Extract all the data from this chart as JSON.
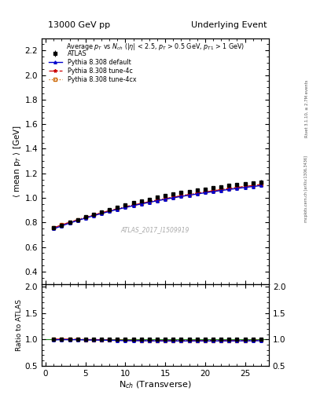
{
  "title_left": "13000 GeV pp",
  "title_right": "Underlying Event",
  "right_label": "Rivet 3.1.10, ≥ 2.7M events",
  "right_label2": "mcplots.cern.ch [arXiv:1306.3436]",
  "watermark": "ATLAS_2017_I1509919",
  "xlabel": "N$_{ch}$ (Transverse)",
  "ylabel_main": "⟨ mean p$_T$ ⟩ [GeV]",
  "ylabel_ratio": "Ratio to ATLAS",
  "ylim_main": [
    0.3,
    2.3
  ],
  "ylim_ratio": [
    0.5,
    2.05
  ],
  "yticks_main": [
    0.4,
    0.6,
    0.8,
    1.0,
    1.2,
    1.4,
    1.6,
    1.8,
    2.0,
    2.2
  ],
  "yticks_ratio": [
    0.5,
    1.0,
    1.5,
    2.0
  ],
  "xlim": [
    -0.5,
    28
  ],
  "nch": [
    1,
    2,
    3,
    4,
    5,
    6,
    7,
    8,
    9,
    10,
    11,
    12,
    13,
    14,
    15,
    16,
    17,
    18,
    19,
    20,
    21,
    22,
    23,
    24,
    25,
    26,
    27
  ],
  "atlas_y": [
    0.755,
    0.775,
    0.8,
    0.82,
    0.845,
    0.865,
    0.885,
    0.905,
    0.925,
    0.945,
    0.96,
    0.975,
    0.99,
    1.005,
    1.018,
    1.03,
    1.042,
    1.052,
    1.062,
    1.072,
    1.082,
    1.09,
    1.1,
    1.108,
    1.115,
    1.122,
    1.128
  ],
  "atlas_yerr": [
    0.008,
    0.006,
    0.005,
    0.005,
    0.005,
    0.005,
    0.005,
    0.005,
    0.005,
    0.005,
    0.005,
    0.005,
    0.005,
    0.005,
    0.006,
    0.006,
    0.006,
    0.007,
    0.007,
    0.008,
    0.009,
    0.01,
    0.011,
    0.012,
    0.013,
    0.015,
    0.018
  ],
  "default_y": [
    0.748,
    0.772,
    0.795,
    0.816,
    0.836,
    0.855,
    0.873,
    0.89,
    0.907,
    0.922,
    0.937,
    0.951,
    0.964,
    0.977,
    0.989,
    1.001,
    1.012,
    1.022,
    1.032,
    1.042,
    1.051,
    1.06,
    1.069,
    1.077,
    1.085,
    1.093,
    1.1
  ],
  "tune4c_y": [
    0.757,
    0.78,
    0.802,
    0.822,
    0.842,
    0.861,
    0.879,
    0.896,
    0.912,
    0.928,
    0.942,
    0.956,
    0.969,
    0.982,
    0.994,
    1.006,
    1.017,
    1.028,
    1.038,
    1.048,
    1.058,
    1.067,
    1.076,
    1.085,
    1.093,
    1.101,
    1.109
  ],
  "tune4cx_y": [
    0.757,
    0.78,
    0.802,
    0.822,
    0.842,
    0.861,
    0.879,
    0.896,
    0.913,
    0.928,
    0.943,
    0.957,
    0.97,
    0.983,
    0.995,
    1.007,
    1.018,
    1.029,
    1.039,
    1.049,
    1.059,
    1.068,
    1.077,
    1.086,
    1.094,
    1.102,
    1.11
  ],
  "color_atlas": "#000000",
  "color_default": "#0000cc",
  "color_tune4c": "#cc0000",
  "color_tune4cx": "#cc6600",
  "bg_color": "#ffffff",
  "legend_labels": [
    "ATLAS",
    "Pythia 8.308 default",
    "Pythia 8.308 tune-4c",
    "Pythia 8.308 tune-4cx"
  ]
}
